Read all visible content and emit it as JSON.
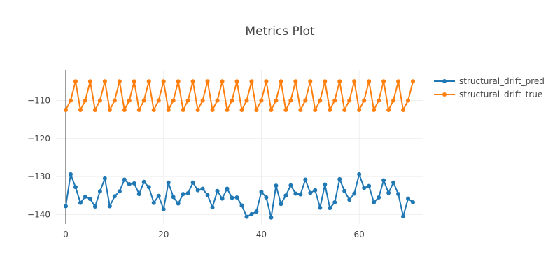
{
  "chart_data": {
    "type": "line",
    "title": "Metrics Plot",
    "xlabel": "",
    "ylabel": "",
    "xlim": [
      -2,
      73
    ],
    "ylim": [
      -142.5,
      -102
    ],
    "x_ticks": [
      0,
      20,
      40,
      60
    ],
    "x_tick_labels": [
      "0",
      "20",
      "40",
      "60"
    ],
    "y_ticks": [
      -110,
      -120,
      -130,
      -140
    ],
    "y_tick_labels": [
      "−110",
      "−120",
      "−130",
      "−140"
    ],
    "grid": true,
    "legend_position": "top-right",
    "x": [
      0,
      1,
      2,
      3,
      4,
      5,
      6,
      7,
      8,
      9,
      10,
      11,
      12,
      13,
      14,
      15,
      16,
      17,
      18,
      19,
      20,
      21,
      22,
      23,
      24,
      25,
      26,
      27,
      28,
      29,
      30,
      31,
      32,
      33,
      34,
      35,
      36,
      37,
      38,
      39,
      40,
      41,
      42,
      43,
      44,
      45,
      46,
      47,
      48,
      49,
      50,
      51,
      52,
      53,
      54,
      55,
      56,
      57,
      58,
      59,
      60,
      61,
      62,
      63,
      64,
      65,
      66,
      67,
      68,
      69,
      70,
      71
    ],
    "series": [
      {
        "name": "structural_drift_pred",
        "color": "#1f77b4",
        "values": [
          -137.8,
          -129.4,
          -132.8,
          -136.9,
          -135.3,
          -135.9,
          -137.9,
          -133.9,
          -130.5,
          -137.8,
          -135.2,
          -133.9,
          -130.8,
          -132.0,
          -131.8,
          -134.6,
          -131.4,
          -132.8,
          -136.9,
          -135.1,
          -138.6,
          -131.6,
          -135.4,
          -137.1,
          -134.6,
          -134.4,
          -131.6,
          -133.6,
          -133.2,
          -134.9,
          -138.1,
          -133.8,
          -135.8,
          -133.2,
          -135.6,
          -135.5,
          -137.6,
          -140.6,
          -139.9,
          -139.2,
          -134.0,
          -135.5,
          -140.8,
          -132.4,
          -137.2,
          -135.0,
          -132.3,
          -134.5,
          -134.7,
          -130.8,
          -134.3,
          -133.6,
          -138.2,
          -132.1,
          -138.3,
          -136.8,
          -130.7,
          -133.8,
          -136.1,
          -134.5,
          -129.4,
          -133.0,
          -132.5,
          -136.8,
          -135.5,
          -131.0,
          -134.3,
          -131.6,
          -134.6,
          -140.5,
          -135.8,
          -136.8
        ]
      },
      {
        "name": "structural_drift_true",
        "color": "#ff7f0e",
        "values": [
          -112.5,
          -110.0,
          -105.0,
          -112.5,
          -110.0,
          -105.0,
          -112.5,
          -110.0,
          -105.0,
          -112.5,
          -110.0,
          -105.0,
          -112.5,
          -110.0,
          -105.0,
          -112.5,
          -110.0,
          -105.0,
          -112.5,
          -110.0,
          -105.0,
          -112.5,
          -110.0,
          -105.0,
          -112.5,
          -110.0,
          -105.0,
          -112.5,
          -110.0,
          -105.0,
          -112.5,
          -110.0,
          -105.0,
          -112.5,
          -110.0,
          -105.0,
          -112.5,
          -110.0,
          -105.0,
          -112.5,
          -110.0,
          -105.0,
          -112.5,
          -110.0,
          -105.0,
          -112.5,
          -110.0,
          -105.0,
          -112.5,
          -110.0,
          -105.0,
          -112.5,
          -110.0,
          -105.0,
          -112.5,
          -110.0,
          -105.0,
          -112.5,
          -110.0,
          -105.0,
          -112.5,
          -110.0,
          -105.0,
          -112.5,
          -110.0,
          -105.0,
          -112.5,
          -110.0,
          -105.0,
          -112.5,
          -110.0,
          -105.0
        ]
      }
    ]
  }
}
